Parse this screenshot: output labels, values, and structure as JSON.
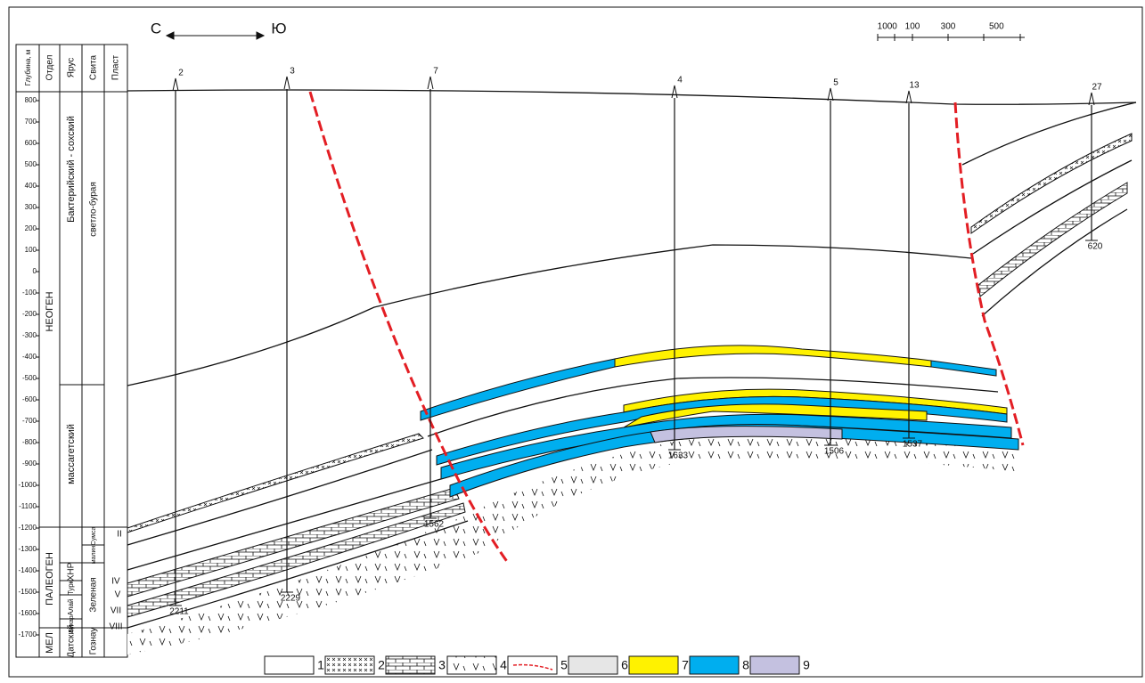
{
  "direction": {
    "left": "С",
    "right": "Ю"
  },
  "scale": [
    100,
    0,
    100,
    300,
    500
  ],
  "columns": {
    "depth": "Глубина, м",
    "division": "Отдел",
    "stage": "Ярус",
    "suite": "Свита",
    "bed": "Пласт"
  },
  "depth_ticks": [
    800,
    700,
    600,
    500,
    400,
    300,
    200,
    100,
    0,
    -100,
    -200,
    -300,
    -400,
    -500,
    -600,
    -700,
    -800,
    -900,
    -1000,
    -1100,
    -1200,
    -1300,
    -1400,
    -1500,
    -1600,
    -1700
  ],
  "divisions": [
    "НЕОГЕН",
    "ПАЛЕОГЕН",
    "МЕЛ"
  ],
  "stages": [
    "Бактерийский - сохский",
    "массагетский",
    "ХНР",
    "Турк",
    "Алай",
    "Бухар",
    "Датский"
  ],
  "suites": [
    "светло-бурая",
    "Сумса",
    "малин.",
    "Зеленая",
    "Гознау"
  ],
  "beds": [
    "II",
    "IV",
    "V",
    "VII",
    "VIII"
  ],
  "wells": [
    {
      "name": "2",
      "depth": 2211
    },
    {
      "name": "3",
      "depth": 2229
    },
    {
      "name": "7",
      "depth": 1562
    },
    {
      "name": "4",
      "depth": 1633
    },
    {
      "name": "5",
      "depth": 1506
    },
    {
      "name": "13",
      "depth": 1537
    },
    {
      "name": "27",
      "depth": 620
    }
  ],
  "legend": [
    "1",
    "2",
    "3",
    "4",
    "5",
    "6",
    "7",
    "8",
    "9"
  ]
}
